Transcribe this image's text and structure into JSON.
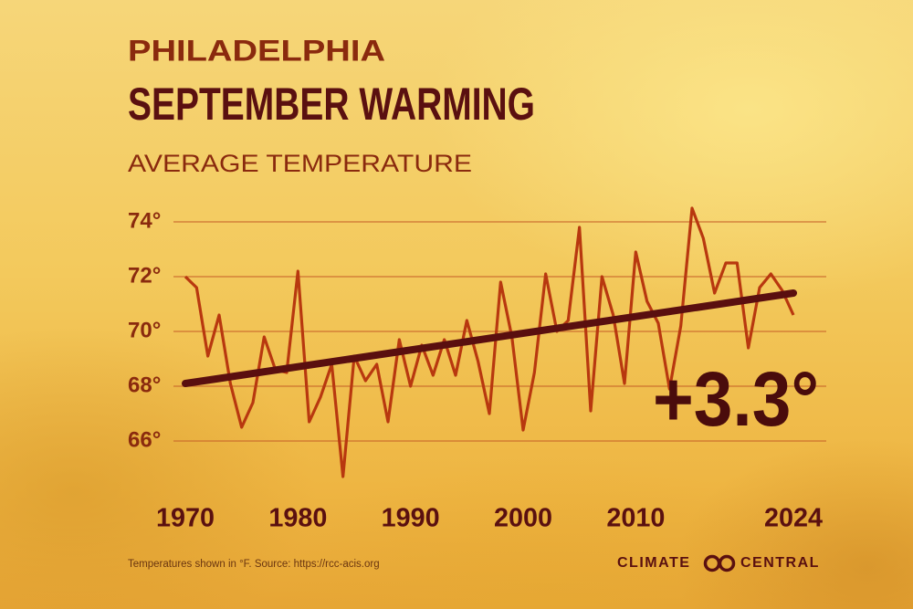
{
  "chart_data": {
    "type": "line",
    "title": "PHILADELPHIA",
    "subtitle": "SEPTEMBER WARMING",
    "y_label": "AVERAGE TEMPERATURE",
    "footnote": "Temperatures shown in °F. Source: https://rcc-acis.org",
    "source_logo": [
      "CLIMATE",
      "CENTRAL"
    ],
    "annotation": "+3.3°",
    "x": [
      1970,
      1971,
      1972,
      1973,
      1974,
      1975,
      1976,
      1977,
      1978,
      1979,
      1980,
      1981,
      1982,
      1983,
      1984,
      1985,
      1986,
      1987,
      1988,
      1989,
      1990,
      1991,
      1992,
      1993,
      1994,
      1995,
      1996,
      1997,
      1998,
      1999,
      2000,
      2001,
      2002,
      2003,
      2004,
      2005,
      2006,
      2007,
      2008,
      2009,
      2010,
      2011,
      2012,
      2013,
      2014,
      2015,
      2016,
      2017,
      2018,
      2019,
      2020,
      2021,
      2022,
      2023,
      2024
    ],
    "values": [
      72.0,
      71.6,
      69.1,
      70.6,
      68.1,
      66.5,
      67.4,
      69.8,
      68.6,
      68.5,
      72.2,
      66.7,
      67.6,
      68.8,
      64.7,
      69.1,
      68.2,
      68.8,
      66.7,
      69.7,
      68.0,
      69.5,
      68.4,
      69.7,
      68.4,
      70.4,
      68.9,
      67.0,
      71.8,
      69.8,
      66.4,
      68.5,
      72.1,
      70.0,
      70.4,
      73.8,
      67.1,
      72.0,
      70.6,
      68.1,
      72.9,
      71.1,
      70.3,
      67.9,
      70.2,
      74.5,
      73.4,
      71.4,
      72.5,
      72.5,
      69.4,
      71.6,
      72.1,
      71.5,
      70.6
    ],
    "color": "#b8380f",
    "trend": {
      "x": [
        1970,
        2024
      ],
      "values": [
        68.1,
        71.4
      ],
      "color": "#5a0f0f"
    },
    "xlim": [
      1970,
      2024
    ],
    "xticks": [
      1970,
      1980,
      1990,
      2000,
      2010,
      2024
    ],
    "ylim": [
      64.5,
      75
    ],
    "yticks": [
      {
        "value": 66,
        "label": "66°"
      },
      {
        "value": 68,
        "label": "68°"
      },
      {
        "value": 70,
        "label": "70°"
      },
      {
        "value": 72,
        "label": "72°"
      },
      {
        "value": 74,
        "label": "74°"
      }
    ],
    "grid": true,
    "grid_color": "#c8642a"
  }
}
